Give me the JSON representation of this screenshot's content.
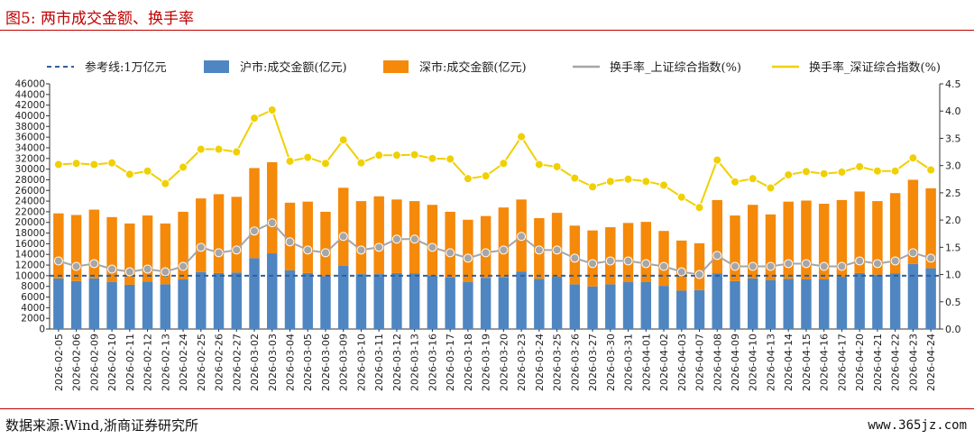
{
  "header": {
    "title": "图5:   两市成交金额、换手率"
  },
  "footer": {
    "source": "数据来源:Wind,浙商证券研究所",
    "watermark": "www.365jz.com"
  },
  "chart_data": {
    "type": "bar",
    "stacked": true,
    "categories": [
      "2026-02-05",
      "2026-02-06",
      "2026-02-09",
      "2026-02-10",
      "2026-02-11",
      "2026-02-12",
      "2026-02-13",
      "2026-02-24",
      "2026-02-25",
      "2026-02-26",
      "2026-02-27",
      "2026-03-02",
      "2026-03-03",
      "2026-03-04",
      "2026-03-05",
      "2026-03-06",
      "2026-03-09",
      "2026-03-10",
      "2026-03-11",
      "2026-03-12",
      "2026-03-13",
      "2026-03-16",
      "2026-03-17",
      "2026-03-18",
      "2026-03-19",
      "2026-03-20",
      "2026-03-23",
      "2026-03-24",
      "2026-03-25",
      "2026-03-26",
      "2026-03-27",
      "2026-03-30",
      "2026-03-31",
      "2026-04-01",
      "2026-04-02",
      "2026-04-03",
      "2026-04-07",
      "2026-04-08",
      "2026-04-09",
      "2026-04-10",
      "2026-04-13",
      "2026-04-14",
      "2026-04-15",
      "2026-04-16",
      "2026-04-17",
      "2026-04-20",
      "2026-04-21",
      "2026-04-22",
      "2026-04-23",
      "2026-04-24"
    ],
    "legend": {
      "ref": "参考线:1万亿元",
      "sh": "沪市:成交金额(亿元)",
      "sz": "深市:成交金额(亿元)",
      "sh_turnover": "换手率_上证综合指数(%)",
      "sz_turnover": "换手率_深证综合指数(%)"
    },
    "reference_line": 10000,
    "series": [
      {
        "name": "沪市:成交金额(亿元)",
        "axis": "left",
        "type": "bar",
        "color": "#4f86c1",
        "values": [
          9500,
          9000,
          9500,
          8800,
          8300,
          8900,
          8400,
          9300,
          10700,
          10500,
          10600,
          13300,
          14200,
          11000,
          10500,
          9900,
          11900,
          10300,
          10300,
          10500,
          10400,
          10100,
          9700,
          8800,
          9600,
          9700,
          10800,
          9400,
          9800,
          8400,
          8000,
          8400,
          8800,
          8800,
          8100,
          7200,
          7300,
          10400,
          9000,
          9500,
          9200,
          9400,
          9300,
          9300,
          9800,
          10500,
          10200,
          10400,
          12200,
          11400
        ]
      },
      {
        "name": "深市:成交金额(亿元)",
        "axis": "left",
        "type": "bar",
        "color": "#f5890a",
        "values": [
          12200,
          12400,
          12900,
          12200,
          11500,
          12400,
          11400,
          12700,
          13800,
          14800,
          14200,
          16900,
          17100,
          12700,
          13400,
          12100,
          14600,
          13700,
          14600,
          13800,
          13600,
          13200,
          12300,
          11700,
          11600,
          13100,
          13500,
          11400,
          12000,
          11000,
          10500,
          10700,
          11100,
          11300,
          10300,
          9400,
          8800,
          13800,
          12300,
          13800,
          12300,
          14500,
          14800,
          14200,
          14400,
          15300,
          13800,
          15100,
          15800,
          15000
        ]
      },
      {
        "name": "换手率_上证综合指数(%)",
        "axis": "right",
        "type": "line",
        "color": "#a6a6a6",
        "values": [
          1.25,
          1.15,
          1.2,
          1.1,
          1.05,
          1.1,
          1.05,
          1.15,
          1.5,
          1.4,
          1.45,
          1.8,
          1.95,
          1.6,
          1.45,
          1.4,
          1.7,
          1.45,
          1.5,
          1.65,
          1.65,
          1.5,
          1.4,
          1.3,
          1.4,
          1.45,
          1.7,
          1.45,
          1.45,
          1.3,
          1.2,
          1.25,
          1.25,
          1.2,
          1.15,
          1.05,
          1.0,
          1.35,
          1.15,
          1.15,
          1.15,
          1.2,
          1.2,
          1.15,
          1.15,
          1.25,
          1.2,
          1.25,
          1.4,
          1.3
        ]
      },
      {
        "name": "换手率_深证综合指数(%)",
        "axis": "right",
        "type": "line",
        "color": "#f0d000",
        "values": [
          3.02,
          3.04,
          3.02,
          3.05,
          2.84,
          2.9,
          2.67,
          2.97,
          3.3,
          3.3,
          3.25,
          3.87,
          4.02,
          3.08,
          3.15,
          3.04,
          3.47,
          3.05,
          3.19,
          3.19,
          3.2,
          3.13,
          3.12,
          2.76,
          2.81,
          3.04,
          3.53,
          3.02,
          2.98,
          2.77,
          2.61,
          2.71,
          2.75,
          2.71,
          2.64,
          2.42,
          2.23,
          3.1,
          2.7,
          2.76,
          2.59,
          2.83,
          2.89,
          2.85,
          2.88,
          2.98,
          2.9,
          2.9,
          3.14,
          2.92
        ]
      }
    ],
    "y_left": {
      "min": 0,
      "max": 46000,
      "step": 2000
    },
    "y_right": {
      "min": 0,
      "max": 4.5,
      "step": 0.5
    },
    "grid": false,
    "legend_position": "top"
  }
}
